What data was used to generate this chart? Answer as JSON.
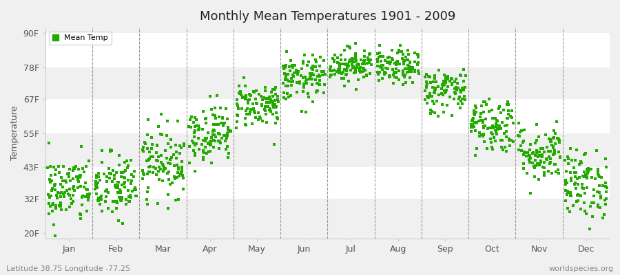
{
  "title": "Monthly Mean Temperatures 1901 - 2009",
  "ylabel": "Temperature",
  "xlabel_labels": [
    "Jan",
    "Feb",
    "Mar",
    "Apr",
    "May",
    "Jun",
    "Jul",
    "Aug",
    "Sep",
    "Oct",
    "Nov",
    "Dec"
  ],
  "ytick_labels": [
    "20F",
    "32F",
    "43F",
    "55F",
    "67F",
    "78F",
    "90F"
  ],
  "ytick_values": [
    20,
    32,
    43,
    55,
    67,
    78,
    90
  ],
  "ylim": [
    18,
    92
  ],
  "legend_label": "Mean Temp",
  "dot_color": "#22aa00",
  "background_color": "#f0f0f0",
  "plot_bg_color": "#ffffff",
  "band_colors": [
    "#f0f0f0",
    "#ffffff"
  ],
  "watermark": "worldspecies.org",
  "subtitle": "Latitude 38.75 Longitude -77.25",
  "monthly_means": [
    35,
    36,
    45,
    55,
    65,
    74,
    79,
    78,
    70,
    58,
    48,
    37
  ],
  "monthly_stds": [
    6,
    6,
    6,
    5,
    4,
    4,
    3,
    3,
    4,
    5,
    5,
    6
  ],
  "n_years": 109
}
